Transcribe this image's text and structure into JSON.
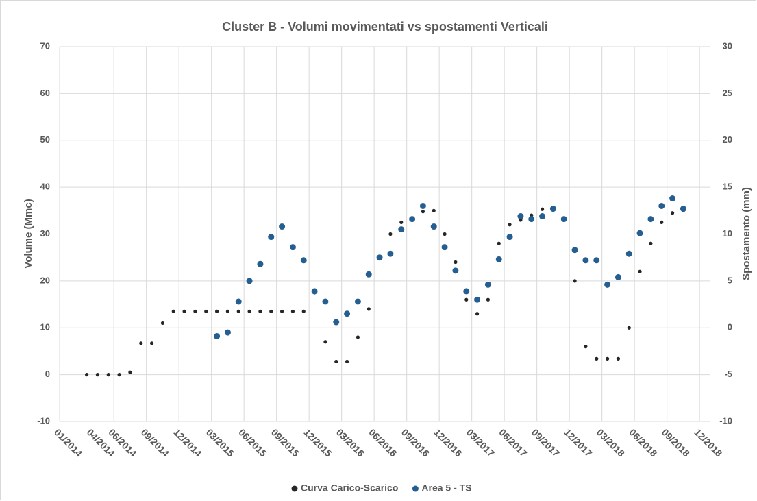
{
  "chart_data": {
    "type": "scatter",
    "title": "Cluster B - Volumi movimentati vs spostamenti Verticali",
    "y_label": "Volume (Mmc)",
    "y2_label": "Spostamento (mm)",
    "grid": true,
    "legend": "bottom",
    "xlim": [
      "2014-01",
      "2018-12"
    ],
    "xticks": [
      {
        "value": "2014-01",
        "label": "01/2014"
      },
      {
        "value": "2014-04",
        "label": "04/2014"
      },
      {
        "value": "2014-06",
        "label": "06/2014"
      },
      {
        "value": "2014-09",
        "label": "09/2014"
      },
      {
        "value": "2014-12",
        "label": "12/2014"
      },
      {
        "value": "2015-03",
        "label": "03/2015"
      },
      {
        "value": "2015-06",
        "label": "06/2015"
      },
      {
        "value": "2015-09",
        "label": "09/2015"
      },
      {
        "value": "2015-12",
        "label": "12/2015"
      },
      {
        "value": "2016-03",
        "label": "03/2016"
      },
      {
        "value": "2016-06",
        "label": "06/2016"
      },
      {
        "value": "2016-09",
        "label": "09/2016"
      },
      {
        "value": "2016-12",
        "label": "12/2016"
      },
      {
        "value": "2017-03",
        "label": "03/2017"
      },
      {
        "value": "2017-06",
        "label": "06/2017"
      },
      {
        "value": "2017-09",
        "label": "09/2017"
      },
      {
        "value": "2017-12",
        "label": "12/2017"
      },
      {
        "value": "2018-03",
        "label": "03/2018"
      },
      {
        "value": "2018-06",
        "label": "06/2018"
      },
      {
        "value": "2018-09",
        "label": "09/2018"
      },
      {
        "value": "2018-12",
        "label": "12/2018"
      }
    ],
    "ylim": [
      -10,
      70
    ],
    "yticks": [
      -10,
      0,
      10,
      20,
      30,
      40,
      50,
      60,
      70
    ],
    "y2lim": [
      -10,
      30
    ],
    "y2ticks": [
      -10,
      -5,
      0,
      5,
      10,
      15,
      20,
      25,
      30
    ],
    "series": [
      {
        "name": "Curva Carico-Scarico",
        "color": "#262626",
        "x": [
          "2014-03",
          "2014-04",
          "2014-05",
          "2014-06",
          "2014-07",
          "2014-08",
          "2014-09",
          "2014-10",
          "2014-11",
          "2014-12",
          "2015-01",
          "2015-02",
          "2015-03",
          "2015-04",
          "2015-05",
          "2015-06",
          "2015-07",
          "2015-08",
          "2015-09",
          "2015-10",
          "2015-11",
          "2015-12",
          "2016-01",
          "2016-02",
          "2016-03",
          "2016-04",
          "2016-05",
          "2016-06",
          "2016-07",
          "2016-08",
          "2016-09",
          "2016-10",
          "2016-11",
          "2016-12",
          "2017-01",
          "2017-02",
          "2017-03",
          "2017-04",
          "2017-05",
          "2017-06",
          "2017-07",
          "2017-08",
          "2017-09",
          "2017-10",
          "2017-11",
          "2017-12",
          "2018-01",
          "2018-02",
          "2018-03",
          "2018-04",
          "2018-05",
          "2018-06",
          "2018-07",
          "2018-08",
          "2018-09",
          "2018-10"
        ],
        "values": [
          0,
          0,
          0,
          0,
          0.5,
          6.7,
          6.7,
          11,
          13.5,
          13.5,
          13.5,
          13.5,
          13.5,
          13.5,
          13.5,
          13.5,
          13.5,
          13.5,
          13.5,
          13.5,
          13.5,
          17.5,
          7,
          2.8,
          2.8,
          8,
          14,
          25,
          30,
          32.5,
          33,
          34.8,
          35,
          30,
          24,
          16,
          13,
          16,
          28,
          32,
          33,
          34,
          35.3,
          35.5,
          33,
          20,
          6,
          3.4,
          3.4,
          3.4,
          10,
          22,
          28,
          32.5,
          34.5,
          35
        ]
      },
      {
        "name": "Area 5 - TS",
        "color": "#255e91",
        "axis": "y2",
        "x": [
          "2015-03",
          "2015-04",
          "2015-05",
          "2015-06",
          "2015-07",
          "2015-08",
          "2015-09",
          "2015-10",
          "2015-11",
          "2015-12",
          "2016-01",
          "2016-02",
          "2016-03",
          "2016-04",
          "2016-05",
          "2016-06",
          "2016-07",
          "2016-08",
          "2016-09",
          "2016-10",
          "2016-11",
          "2016-12",
          "2017-01",
          "2017-02",
          "2017-03",
          "2017-04",
          "2017-05",
          "2017-06",
          "2017-07",
          "2017-08",
          "2017-09",
          "2017-10",
          "2017-11",
          "2017-12",
          "2018-01",
          "2018-02",
          "2018-03",
          "2018-04",
          "2018-05",
          "2018-06",
          "2018-07",
          "2018-08",
          "2018-09",
          "2018-10"
        ],
        "values": [
          -0.9,
          -0.5,
          2.8,
          5,
          6.8,
          9.7,
          10.8,
          8.6,
          7.2,
          3.9,
          2.8,
          0.6,
          1.5,
          2.8,
          5.7,
          7.5,
          7.9,
          10.5,
          11.6,
          13,
          10.8,
          8.6,
          6.1,
          3.9,
          3,
          4.6,
          7.3,
          9.7,
          11.9,
          11.6,
          11.9,
          12.7,
          11.6,
          8.3,
          7.2,
          7.2,
          4.6,
          5.4,
          7.9,
          10.1,
          11.6,
          13,
          13.8,
          12.7
        ]
      }
    ]
  }
}
